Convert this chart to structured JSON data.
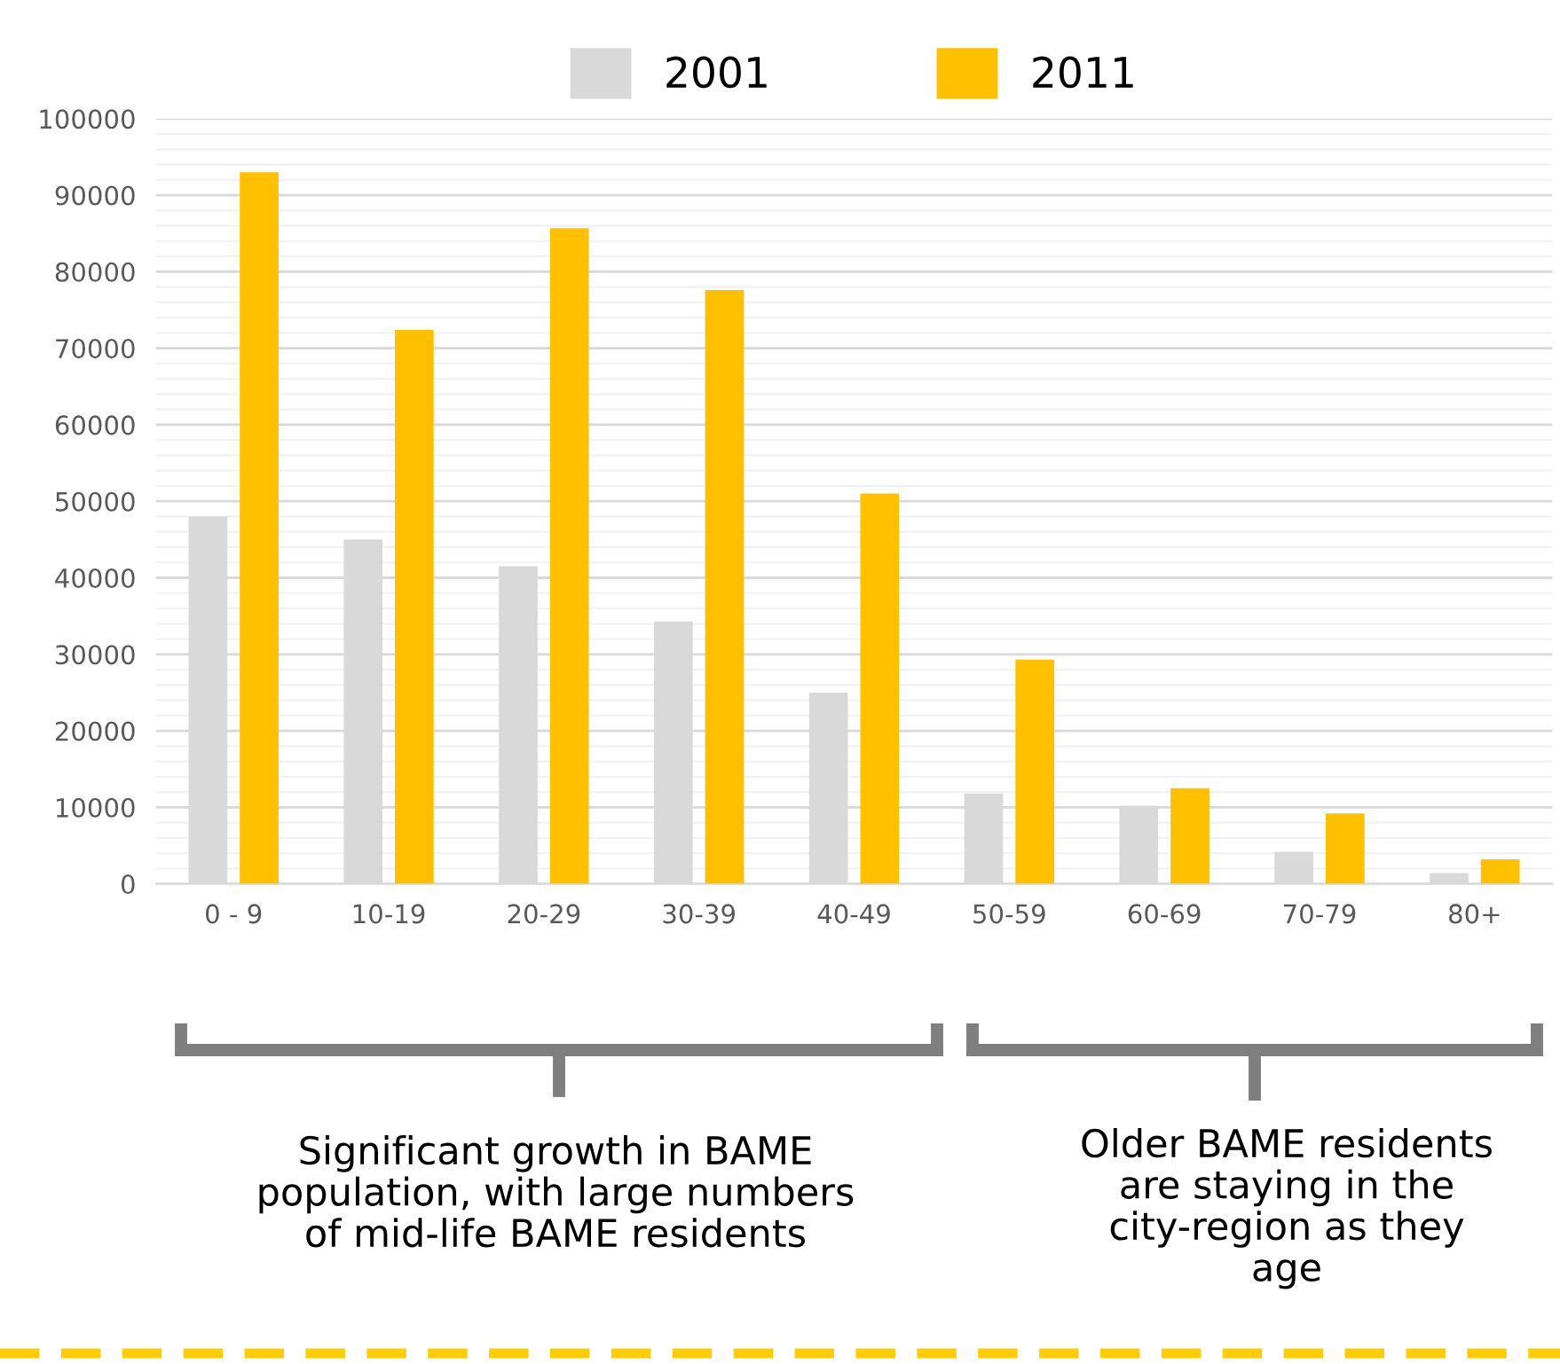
{
  "chart_data": {
    "type": "bar",
    "categories": [
      "0 - 9",
      "10-19",
      "20-29",
      "30-39",
      "40-49",
      "50-59",
      "60-69",
      "70-79",
      "80+"
    ],
    "series": [
      {
        "name": "2001",
        "color": "#d9d9d9",
        "values": [
          48000,
          45000,
          41500,
          34300,
          25000,
          11800,
          10200,
          4200,
          1400
        ]
      },
      {
        "name": "2011",
        "color": "#ffc000",
        "values": [
          93000,
          72400,
          85700,
          77600,
          51000,
          29300,
          12500,
          9200,
          3200
        ]
      }
    ],
    "ylim": [
      0,
      100000
    ],
    "yticks": [
      0,
      10000,
      20000,
      30000,
      40000,
      50000,
      60000,
      70000,
      80000,
      90000,
      100000
    ],
    "grid": "y",
    "legend": "top",
    "annotations": [
      "Significant growth in BAME\npopulation, with large numbers\nof mid-life BAME residents",
      "Older BAME residents\nare staying in the\ncity-region as they\nage"
    ]
  }
}
